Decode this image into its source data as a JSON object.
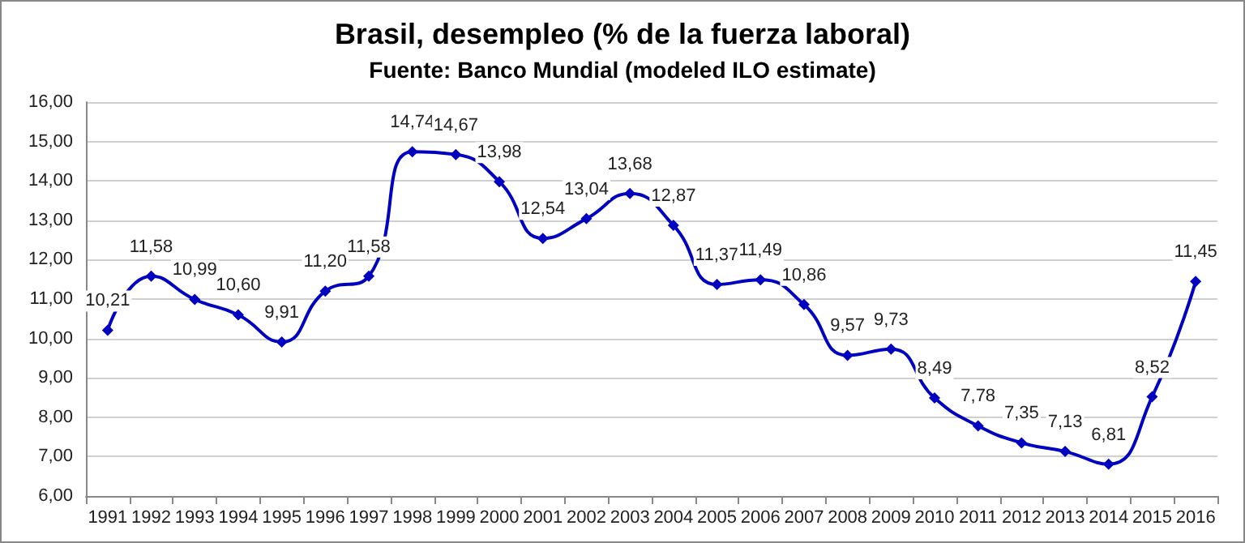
{
  "chart_data": {
    "type": "line",
    "title": "Brasil, desempleo (% de la fuerza laboral)",
    "subtitle": "Fuente: Banco Mundial (modeled ILO estimate)",
    "categories": [
      "1991",
      "1992",
      "1993",
      "1994",
      "1995",
      "1996",
      "1997",
      "1998",
      "1999",
      "2000",
      "2001",
      "2002",
      "2003",
      "2004",
      "2005",
      "2006",
      "2007",
      "2008",
      "2009",
      "2010",
      "2011",
      "2012",
      "2013",
      "2014",
      "2015",
      "2016"
    ],
    "series": [
      {
        "color": "#0000c0",
        "values": [
          10.21,
          11.58,
          10.99,
          10.6,
          9.91,
          11.2,
          11.58,
          14.74,
          14.67,
          13.98,
          12.54,
          13.04,
          13.68,
          12.87,
          11.37,
          11.49,
          10.86,
          9.57,
          9.73,
          8.49,
          7.78,
          7.35,
          7.13,
          6.81,
          8.52,
          11.45
        ],
        "value_labels": [
          "10,21",
          "11,58",
          "10,99",
          "10,60",
          "9,91",
          "11,20",
          "11,58",
          "14,74",
          "14,67",
          "13,98",
          "12,54",
          "13,04",
          "13,68",
          "12,87",
          "11,37",
          "11,49",
          "10,86",
          "9,57",
          "9,73",
          "8,49",
          "7,78",
          "7,35",
          "7,13",
          "6,81",
          "8,52",
          "11,45"
        ]
      }
    ],
    "ylim": [
      6,
      16
    ],
    "yticks": [
      {
        "value": 6,
        "label": "6,00"
      },
      {
        "value": 7,
        "label": "7,00"
      },
      {
        "value": 8,
        "label": "8,00"
      },
      {
        "value": 9,
        "label": "9,00"
      },
      {
        "value": 10,
        "label": "10,00"
      },
      {
        "value": 11,
        "label": "11,00"
      },
      {
        "value": 12,
        "label": "12,00"
      },
      {
        "value": 13,
        "label": "13,00"
      },
      {
        "value": 14,
        "label": "14,00"
      },
      {
        "value": 15,
        "label": "15,00"
      },
      {
        "value": 16,
        "label": "16,00"
      }
    ],
    "grid": "y",
    "marker": "diamond",
    "line_style": "solid"
  }
}
